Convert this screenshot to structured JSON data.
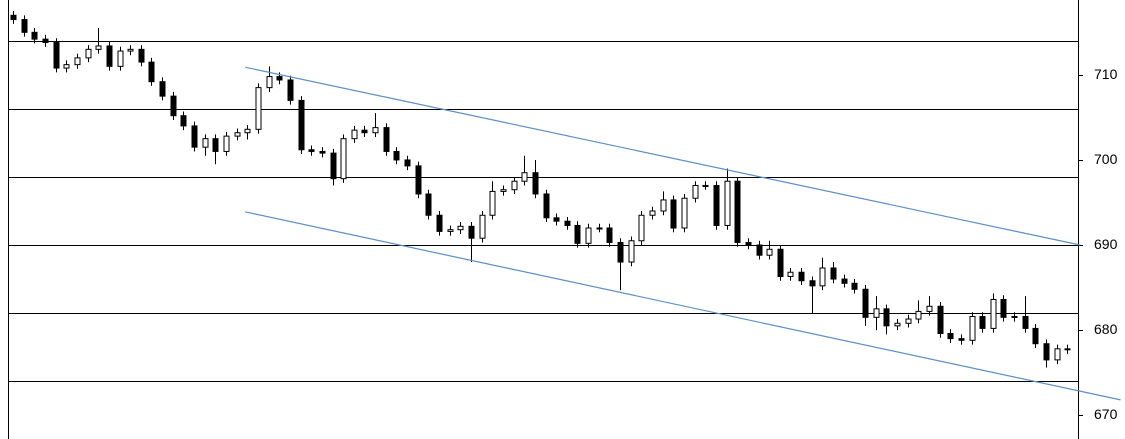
{
  "chart_data": {
    "type": "candlestick",
    "open": [
      717,
      716.5,
      715,
      714.2,
      713.8,
      710.8,
      711.2,
      712,
      713,
      713.4,
      711,
      712.8,
      713,
      711.5,
      709.2,
      707.5,
      705.2,
      704,
      701.5,
      702.5,
      701,
      702.8,
      703.2,
      703.6,
      708.5,
      709.8,
      709.4,
      707,
      701.2,
      701,
      700.8,
      697.8,
      702.5,
      703.5,
      703.2,
      703.8,
      701,
      700,
      699.3,
      696,
      693.5,
      691.6,
      691.8,
      692.2,
      690.8,
      693.5,
      696.3,
      696.5,
      697.5,
      698.5,
      696,
      693.2,
      692.8,
      692.3,
      690.2,
      692,
      692,
      690.3,
      688,
      690.5,
      693.5,
      694,
      695.3,
      692,
      695.5,
      697,
      697,
      692.3,
      697.5,
      690.3,
      690,
      688.8,
      689.5,
      686.3,
      686.8,
      685.8,
      685.2,
      687.3,
      686,
      685.5,
      684.8,
      681.5,
      682.5,
      680.5,
      680.8,
      681.3,
      682.2,
      682.8,
      679.6,
      679,
      678.8,
      681.6,
      680.2,
      683.6,
      681.5,
      681.6,
      680.2,
      678.4,
      676.5,
      677.8
    ],
    "high": [
      717.5,
      717,
      715.5,
      714.7,
      714.3,
      711.7,
      712.5,
      713.5,
      715.5,
      713.9,
      713.3,
      713.5,
      713.5,
      712,
      709.7,
      708,
      705.7,
      704.5,
      703,
      703,
      703.3,
      703.7,
      704.1,
      709,
      711,
      710.3,
      709.9,
      707.5,
      701.7,
      701.5,
      701.3,
      703,
      704,
      704,
      705.5,
      704.3,
      701.5,
      700.5,
      699.8,
      696.5,
      694,
      692.3,
      692.7,
      692.7,
      694,
      697.5,
      697,
      698,
      700.5,
      700,
      696.5,
      693.7,
      693.3,
      692.8,
      692.5,
      692.5,
      692.5,
      690.8,
      691,
      694,
      694.5,
      696.3,
      695.8,
      696,
      697.5,
      697.5,
      697.5,
      699,
      698,
      690.8,
      690.5,
      690.5,
      690,
      687.3,
      687.3,
      686.3,
      688.5,
      688,
      686.5,
      686,
      685.3,
      684,
      683,
      681.3,
      681.8,
      683.5,
      684,
      683.3,
      680.1,
      679.5,
      682.1,
      682.1,
      684.3,
      684.1,
      682.1,
      684,
      680.7,
      678.9,
      678.3,
      678.3
    ],
    "low": [
      716,
      714.5,
      713.7,
      713.3,
      710.3,
      710.3,
      710.7,
      711.5,
      712.5,
      710.5,
      710.5,
      712.3,
      711,
      708.7,
      707,
      704.7,
      703.5,
      701,
      700.5,
      699.5,
      700.5,
      702.3,
      702.4,
      703.1,
      708,
      708.9,
      706.5,
      700.7,
      700.5,
      700.3,
      697,
      697.3,
      702,
      702.7,
      702.7,
      700.5,
      699.5,
      698.8,
      695.5,
      693,
      691.1,
      691.1,
      691.3,
      688,
      690.3,
      693,
      695.8,
      696,
      697,
      695.5,
      692.7,
      692.3,
      691.8,
      689.7,
      689.7,
      691.5,
      689.8,
      684.7,
      687.5,
      690,
      693,
      693.5,
      691.5,
      691.5,
      695,
      696.5,
      691.8,
      691.8,
      689.8,
      689.5,
      688.3,
      688.3,
      685.8,
      685.8,
      685.3,
      682,
      684.7,
      685.5,
      685,
      684.3,
      680.5,
      680,
      679.5,
      680,
      680.3,
      680.8,
      681.7,
      679.1,
      678.5,
      678.3,
      678.3,
      679.7,
      679.7,
      681,
      681,
      679.7,
      677.9,
      675.6,
      676,
      677.2
    ],
    "close": [
      716.5,
      715,
      714.2,
      713.8,
      710.8,
      711.2,
      712,
      713,
      713.4,
      711,
      712.8,
      713,
      711.5,
      709.2,
      707.5,
      705.2,
      704,
      701.5,
      702.5,
      701,
      702.8,
      703.2,
      703.6,
      708.5,
      709.8,
      709.4,
      707,
      701.2,
      701,
      700.8,
      697.8,
      702.5,
      703.5,
      703.2,
      703.8,
      701,
      700,
      699.3,
      696,
      693.5,
      691.6,
      691.8,
      692.2,
      690.8,
      693.5,
      696.3,
      696.5,
      697.5,
      698.5,
      696,
      693.2,
      692.8,
      692.3,
      690.2,
      692,
      692,
      690.3,
      688,
      690.5,
      693.5,
      694,
      695.3,
      692,
      695.5,
      697,
      697,
      692.3,
      697.5,
      690.3,
      690,
      688.8,
      689.5,
      686.3,
      686.8,
      685.8,
      685.2,
      687.3,
      686,
      685.5,
      684.8,
      681.5,
      682.5,
      680.5,
      680.8,
      681.3,
      682.2,
      682.8,
      679.6,
      679,
      678.8,
      681.6,
      680.2,
      683.6,
      681.5,
      681.6,
      680.2,
      678.4,
      676.5,
      677.8,
      677.7
    ],
    "up_color": "#ffffff",
    "down_color": "#000000",
    "xlim": [
      -0.47,
      100
    ],
    "ylim": [
      667.2,
      718.8
    ],
    "yticks": [
      670,
      680,
      690,
      700,
      710
    ],
    "gridlines": [
      674,
      682,
      690,
      698,
      706,
      714
    ],
    "trendline_color": "#5b8fc7",
    "trendlines": [
      {
        "x": [
          21.8,
          100.2
        ],
        "y": [
          710.9,
          690
        ]
      },
      {
        "x": [
          21.8,
          104
        ],
        "y": [
          693.9,
          671.8
        ]
      }
    ]
  }
}
